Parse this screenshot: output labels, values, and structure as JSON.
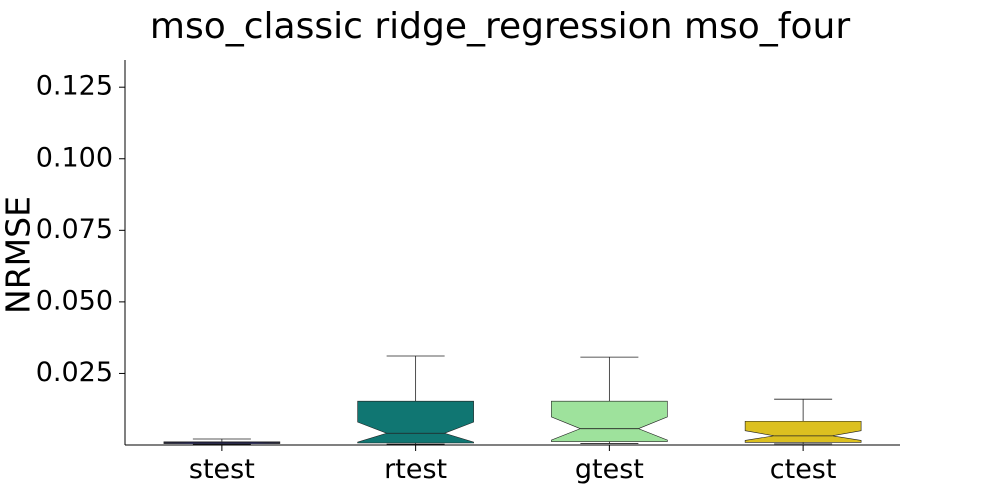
{
  "chart_data": {
    "type": "boxplot",
    "title": "mso_classic ridge_regression mso_four",
    "xlabel": "",
    "ylabel": "NRMSE",
    "ylim": [
      0.0,
      0.1345
    ],
    "yticks": [
      0.025,
      0.05,
      0.075,
      0.1,
      0.125
    ],
    "ytick_labels": [
      "0.025",
      "0.050",
      "0.075",
      "0.100",
      "0.125"
    ],
    "notched": true,
    "grid": false,
    "categories": [
      "stest",
      "rtest",
      "gtest",
      "ctest"
    ],
    "series": [
      {
        "category": "stest",
        "color": "#1a1aa8",
        "q1": 0.0005,
        "median": 0.0008,
        "q3": 0.0011,
        "whisker_low": 0.0003,
        "whisker_high": 0.0021,
        "notch_low": 0.0007,
        "notch_high": 0.0009
      },
      {
        "category": "rtest",
        "color": "#107672",
        "q1": 0.0007,
        "median": 0.0041,
        "q3": 0.0153,
        "whisker_low": 0.0003,
        "whisker_high": 0.0311,
        "notch_low": 0.001,
        "notch_high": 0.008
      },
      {
        "category": "gtest",
        "color": "#9ee29c",
        "q1": 0.0012,
        "median": 0.0057,
        "q3": 0.0153,
        "whisker_low": 0.0005,
        "whisker_high": 0.0307,
        "notch_low": 0.0017,
        "notch_high": 0.0098
      },
      {
        "category": "ctest",
        "color": "#dcc020",
        "q1": 0.0009,
        "median": 0.0032,
        "q3": 0.0083,
        "whisker_low": 0.0004,
        "whisker_high": 0.016,
        "notch_low": 0.0016,
        "notch_high": 0.005
      }
    ]
  }
}
